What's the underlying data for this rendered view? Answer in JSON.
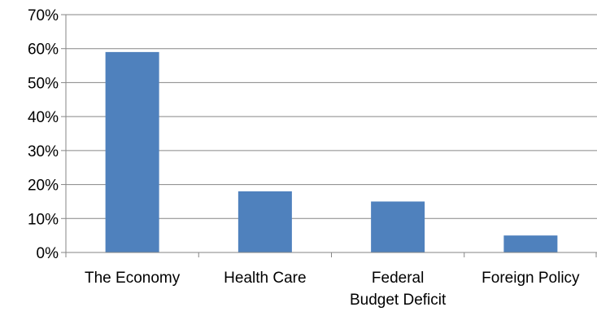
{
  "chart_data": {
    "type": "bar",
    "categories": [
      [
        "The Economy"
      ],
      [
        "Health Care"
      ],
      [
        "Federal",
        "Budget Deficit"
      ],
      [
        "Foreign Policy"
      ]
    ],
    "values": [
      59,
      18,
      15,
      5
    ],
    "y_ticks": [
      "0%",
      "10%",
      "20%",
      "30%",
      "40%",
      "50%",
      "60%",
      "70%"
    ],
    "ylim": [
      0,
      70
    ],
    "y_format": "percent",
    "grid": true,
    "legend": "none",
    "title": "",
    "xlabel": "",
    "ylabel": "",
    "bar_color": "#4F81BD",
    "grid_color": "#868686"
  }
}
